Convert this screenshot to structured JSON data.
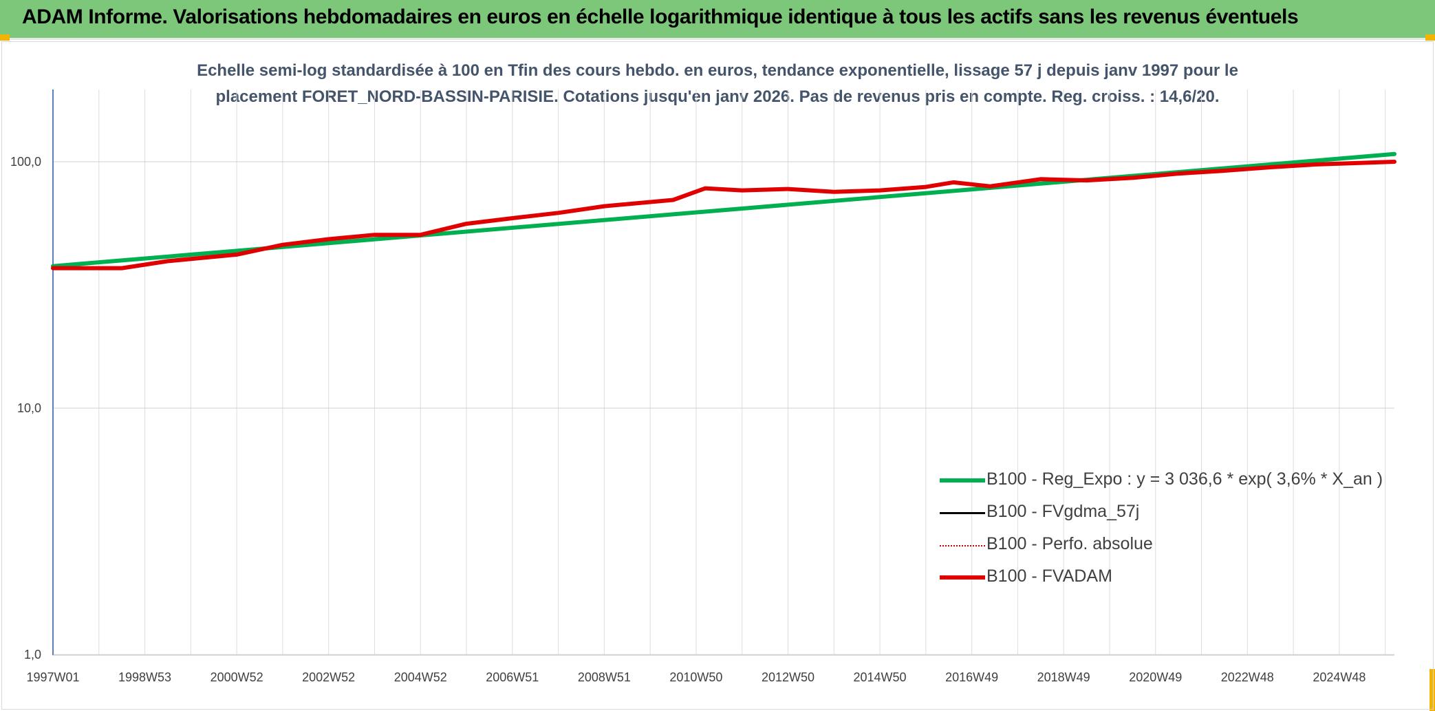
{
  "header": {
    "title": "ADAM Informe. Valorisations hebdomadaires en euros en échelle logarithmique identique à tous les actifs sans les revenus éventuels"
  },
  "chart_data": {
    "type": "line",
    "title_lines": [
      "Echelle semi-log standardisée à 100 en Tfin des cours hebdo. en euros, tendance exponentielle, lissage 57 j depuis janv 1997 pour le",
      "placement FORET_NORD-BASSIN-PARISIE. Cotations jusqu'en janv 2026. Pas de revenus pris en compte. Reg. croiss. : 14,6/20."
    ],
    "y_scale": "log",
    "ylim": [
      1,
      200
    ],
    "y_ticks": [
      {
        "value": 1,
        "label": "1,0"
      },
      {
        "value": 10,
        "label": "10,0"
      },
      {
        "value": 100,
        "label": "100,0"
      }
    ],
    "xlim": [
      1997.0,
      2026.2
    ],
    "x_ticks": [
      {
        "value": 1997.0,
        "label": "1997W01"
      },
      {
        "value": 1999.0,
        "label": "1998W53"
      },
      {
        "value": 2001.0,
        "label": "2000W52"
      },
      {
        "value": 2003.0,
        "label": "2002W52"
      },
      {
        "value": 2005.0,
        "label": "2004W52"
      },
      {
        "value": 2007.0,
        "label": "2006W51"
      },
      {
        "value": 2009.0,
        "label": "2008W51"
      },
      {
        "value": 2011.0,
        "label": "2010W50"
      },
      {
        "value": 2013.0,
        "label": "2012W50"
      },
      {
        "value": 2015.0,
        "label": "2014W50"
      },
      {
        "value": 2017.0,
        "label": "2016W49"
      },
      {
        "value": 2019.0,
        "label": "2018W49"
      },
      {
        "value": 2021.0,
        "label": "2020W49"
      },
      {
        "value": 2023.0,
        "label": "2022W48"
      },
      {
        "value": 2025.0,
        "label": "2024W48"
      }
    ],
    "grid": true,
    "legend_position": "bottom-right",
    "series": [
      {
        "name": "B100 - Reg_Expo : y = 3 036,6 * exp( 3,6% *  X_an )",
        "color": "#00b050",
        "style": "solid-thick",
        "x": [
          1997.0,
          2026.2
        ],
        "y": [
          37.7,
          107.5
        ]
      },
      {
        "name": "B100 - FVgdma_57j",
        "color": "#000000",
        "style": "solid-thin",
        "x": [],
        "y": []
      },
      {
        "name": "B100 - Perfo. absolue",
        "color": "#c00000",
        "style": "dotted",
        "x": [],
        "y": []
      },
      {
        "name": "B100 - FVADAM",
        "color": "#e00000",
        "style": "solid-thick",
        "x": [
          1997.0,
          1998.5,
          1999.5,
          2001.0,
          2002.0,
          2003.0,
          2004.0,
          2005.0,
          2006.0,
          2007.0,
          2008.0,
          2009.0,
          2010.5,
          2011.2,
          2012.0,
          2013.0,
          2014.0,
          2015.0,
          2016.0,
          2016.6,
          2017.4,
          2018.5,
          2019.5,
          2020.5,
          2021.5,
          2022.5,
          2023.5,
          2024.5,
          2025.5,
          2026.2
        ],
        "y": [
          37.0,
          37.0,
          39.5,
          42.0,
          46.0,
          48.5,
          50.5,
          50.5,
          56.0,
          59.0,
          62.0,
          66.0,
          70.0,
          78.0,
          76.5,
          77.5,
          75.5,
          76.5,
          79.0,
          82.5,
          79.5,
          85.0,
          84.0,
          86.0,
          89.5,
          92.0,
          95.0,
          97.5,
          99.0,
          100.0
        ]
      }
    ]
  }
}
